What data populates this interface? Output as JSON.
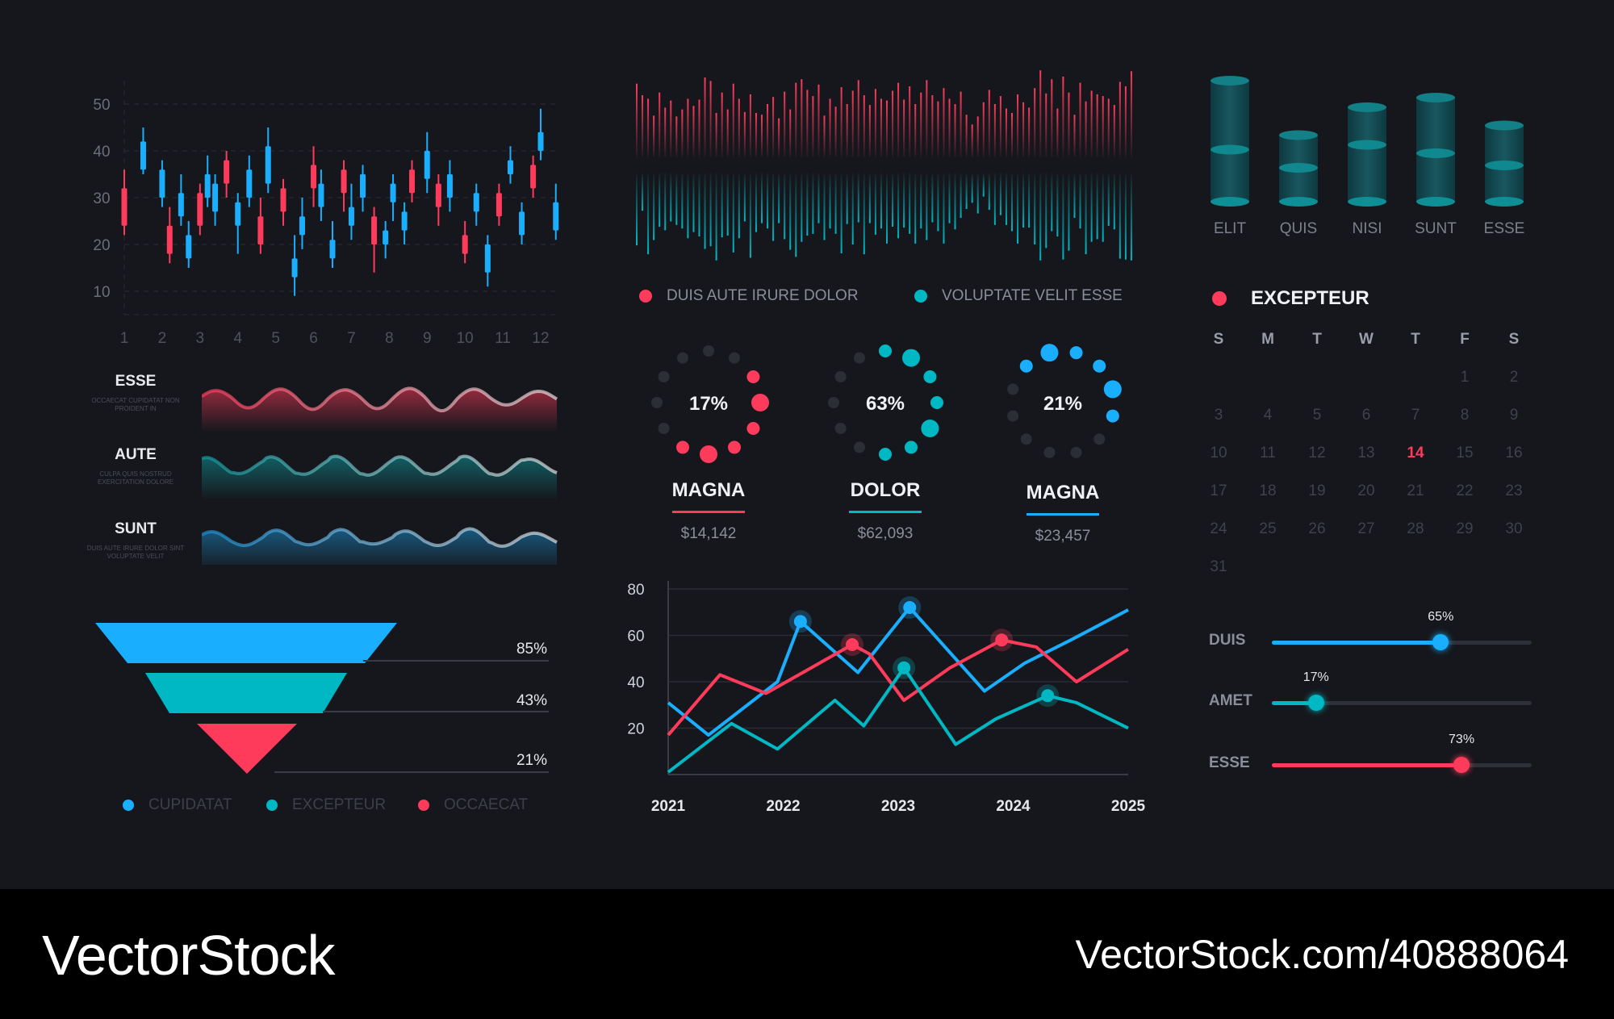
{
  "colors": {
    "background": "#16171c",
    "red": "#ff3b5c",
    "cyan": "#00b8c4",
    "blue": "#1aaeff",
    "teal": "#0e8f95",
    "grid": "#2c2e36"
  },
  "candlestick": {
    "y_ticks": [
      "50",
      "40",
      "30",
      "20",
      "10"
    ],
    "x_ticks": [
      "1",
      "2",
      "3",
      "4",
      "5",
      "6",
      "7",
      "8",
      "9",
      "10",
      "11",
      "12"
    ]
  },
  "waves": [
    {
      "title": "ESSE",
      "subtitle": "OCCAECAT CUPIDATAT NON PROIDENT IN"
    },
    {
      "title": "AUTE",
      "subtitle": "CULPA QUIS NOSTRUD EXERCITATION DOLORE"
    },
    {
      "title": "SUNT",
      "subtitle": "DUIS AUTE IRURE DOLOR SINT VOLUPTATE VELIT"
    }
  ],
  "funnel": {
    "labels": [
      "85%",
      "43%",
      "21%"
    ],
    "legend": [
      "CUPIDATAT",
      "EXCEPTEUR",
      "OCCAECAT"
    ]
  },
  "spectrum_legend": [
    "DUIS AUTE IRURE DOLOR",
    "VOLUPTATE VELIT ESSE"
  ],
  "rings": [
    {
      "pct": "17%",
      "title": "MAGNA",
      "value": "$14,142"
    },
    {
      "pct": "63%",
      "title": "DOLOR",
      "value": "$62,093"
    },
    {
      "pct": "21%",
      "title": "MAGNA",
      "value": "$23,457"
    }
  ],
  "cylinders": {
    "labels": [
      "ELIT",
      "QUIS",
      "NISI",
      "SUNT",
      "ESSE"
    ]
  },
  "calendar": {
    "title": "EXCEPTEUR",
    "weekdays": [
      "S",
      "M",
      "T",
      "W",
      "T",
      "F",
      "S"
    ],
    "days": [
      "1",
      "2",
      "3",
      "4",
      "5",
      "6",
      "7",
      "8",
      "9",
      "10",
      "11",
      "12",
      "13",
      "14",
      "15",
      "16",
      "17",
      "18",
      "19",
      "20",
      "21",
      "22",
      "23",
      "24",
      "25",
      "26",
      "27",
      "28",
      "29",
      "30",
      "31"
    ],
    "highlight": "14"
  },
  "sliders": [
    {
      "label": "DUIS",
      "pct": "65%",
      "value": 0.65,
      "color": "#1aaeff"
    },
    {
      "label": "AMET",
      "pct": "17%",
      "value": 0.17,
      "color": "#00b8c4"
    },
    {
      "label": "ESSE",
      "pct": "73%",
      "value": 0.73,
      "color": "#ff3b5c"
    }
  ],
  "footer": {
    "brand": "VectorStock",
    "url": "VectorStock.com/40888064"
  },
  "chart_data": [
    {
      "type": "candlestick",
      "x": [
        1,
        2,
        3,
        4,
        5,
        6,
        7,
        8,
        9,
        10,
        11,
        12
      ],
      "ylim": [
        5,
        55
      ],
      "y_ticks": [
        10,
        20,
        30,
        40,
        50
      ],
      "grid": true,
      "candles": [
        {
          "x": 1.0,
          "o": 24,
          "c": 32,
          "h": 36,
          "l": 22,
          "up": false
        },
        {
          "x": 1.5,
          "o": 36,
          "c": 42,
          "h": 45,
          "l": 35,
          "up": true
        },
        {
          "x": 2.0,
          "o": 30,
          "c": 36,
          "h": 38,
          "l": 28,
          "up": true
        },
        {
          "x": 2.2,
          "o": 18,
          "c": 24,
          "h": 28,
          "l": 16,
          "up": false
        },
        {
          "x": 2.5,
          "o": 26,
          "c": 31,
          "h": 35,
          "l": 24,
          "up": true
        },
        {
          "x": 2.7,
          "o": 17,
          "c": 22,
          "h": 25,
          "l": 15,
          "up": true
        },
        {
          "x": 3.0,
          "o": 24,
          "c": 31,
          "h": 33,
          "l": 22,
          "up": false
        },
        {
          "x": 3.2,
          "o": 30,
          "c": 35,
          "h": 39,
          "l": 28,
          "up": true
        },
        {
          "x": 3.4,
          "o": 27,
          "c": 33,
          "h": 35,
          "l": 24,
          "up": true
        },
        {
          "x": 3.7,
          "o": 33,
          "c": 38,
          "h": 40,
          "l": 30,
          "up": false
        },
        {
          "x": 4.0,
          "o": 24,
          "c": 29,
          "h": 31,
          "l": 18,
          "up": true
        },
        {
          "x": 4.3,
          "o": 30,
          "c": 36,
          "h": 39,
          "l": 28,
          "up": true
        },
        {
          "x": 4.6,
          "o": 20,
          "c": 26,
          "h": 30,
          "l": 18,
          "up": false
        },
        {
          "x": 4.8,
          "o": 33,
          "c": 41,
          "h": 45,
          "l": 31,
          "up": true
        },
        {
          "x": 5.2,
          "o": 27,
          "c": 32,
          "h": 34,
          "l": 24,
          "up": false
        },
        {
          "x": 5.5,
          "o": 13,
          "c": 17,
          "h": 22,
          "l": 9,
          "up": true
        },
        {
          "x": 5.7,
          "o": 22,
          "c": 26,
          "h": 30,
          "l": 19,
          "up": true
        },
        {
          "x": 6.0,
          "o": 32,
          "c": 37,
          "h": 41,
          "l": 28,
          "up": false
        },
        {
          "x": 6.2,
          "o": 28,
          "c": 33,
          "h": 36,
          "l": 25,
          "up": true
        },
        {
          "x": 6.5,
          "o": 17,
          "c": 21,
          "h": 25,
          "l": 15,
          "up": true
        },
        {
          "x": 6.8,
          "o": 31,
          "c": 36,
          "h": 38,
          "l": 27,
          "up": false
        },
        {
          "x": 7.0,
          "o": 24,
          "c": 28,
          "h": 33,
          "l": 21,
          "up": true
        },
        {
          "x": 7.3,
          "o": 30,
          "c": 35,
          "h": 37,
          "l": 27,
          "up": true
        },
        {
          "x": 7.6,
          "o": 20,
          "c": 26,
          "h": 28,
          "l": 14,
          "up": false
        },
        {
          "x": 7.9,
          "o": 20,
          "c": 23,
          "h": 25,
          "l": 17,
          "up": true
        },
        {
          "x": 8.1,
          "o": 29,
          "c": 33,
          "h": 35,
          "l": 25,
          "up": true
        },
        {
          "x": 8.4,
          "o": 23,
          "c": 27,
          "h": 29,
          "l": 20,
          "up": true
        },
        {
          "x": 8.6,
          "o": 31,
          "c": 36,
          "h": 38,
          "l": 29,
          "up": false
        },
        {
          "x": 9.0,
          "o": 34,
          "c": 40,
          "h": 44,
          "l": 31,
          "up": true
        },
        {
          "x": 9.3,
          "o": 28,
          "c": 33,
          "h": 35,
          "l": 24,
          "up": false
        },
        {
          "x": 9.6,
          "o": 30,
          "c": 35,
          "h": 38,
          "l": 27,
          "up": true
        },
        {
          "x": 10.0,
          "o": 18,
          "c": 22,
          "h": 25,
          "l": 16,
          "up": false
        },
        {
          "x": 10.3,
          "o": 27,
          "c": 31,
          "h": 33,
          "l": 24,
          "up": true
        },
        {
          "x": 10.6,
          "o": 14,
          "c": 20,
          "h": 22,
          "l": 11,
          "up": true
        },
        {
          "x": 10.9,
          "o": 26,
          "c": 31,
          "h": 33,
          "l": 24,
          "up": false
        },
        {
          "x": 11.2,
          "o": 35,
          "c": 38,
          "h": 41,
          "l": 33,
          "up": true
        },
        {
          "x": 11.5,
          "o": 22,
          "c": 27,
          "h": 29,
          "l": 20,
          "up": true
        },
        {
          "x": 11.8,
          "o": 32,
          "c": 37,
          "h": 39,
          "l": 30,
          "up": false
        },
        {
          "x": 12.0,
          "o": 40,
          "c": 44,
          "h": 49,
          "l": 38,
          "up": true
        },
        {
          "x": 12.4,
          "o": 23,
          "c": 29,
          "h": 33,
          "l": 21,
          "up": true
        }
      ]
    },
    {
      "type": "bar",
      "subtype": "mirrored-spectrum",
      "bars": 88,
      "series": [
        {
          "name": "DUIS AUTE IRURE DOLOR",
          "color": "#ff3b5c",
          "values": [
            0.83,
            0.7,
            0.66,
            0.47,
            0.73,
            0.56,
            0.64,
            0.46,
            0.54,
            0.66,
            0.58,
            0.65,
            0.9,
            0.86,
            0.5,
            0.73,
            0.54,
            0.83,
            0.66,
            0.51,
            0.71,
            0.5,
            0.48,
            0.6,
            0.68,
            0.44,
            0.74,
            0.54,
            0.84,
            0.88,
            0.76,
            0.69,
            0.82,
            0.47,
            0.66,
            0.57,
            0.79,
            0.6,
            0.75,
            0.87,
            0.7,
            0.59,
            0.77,
            0.66,
            0.64,
            0.75,
            0.84,
            0.65,
            0.8,
            0.6,
            0.73,
            0.87,
            0.7,
            0.63,
            0.78,
            0.66,
            0.6,
            0.74,
            0.48,
            0.37,
            0.46,
            0.62,
            0.76,
            0.6,
            0.69,
            0.55,
            0.5,
            0.71,
            0.62,
            0.56,
            0.78,
            0.98,
            0.72,
            0.88,
            0.55,
            0.91,
            0.73,
            0.48,
            0.84,
            0.63,
            0.75,
            0.71,
            0.69,
            0.66,
            0.59,
            0.85,
            0.8,
            0.97
          ]
        },
        {
          "name": "VOLUPTATE VELIT ESSE",
          "color": "#00b8c4",
          "values": [
            0.81,
            0.42,
            0.91,
            0.75,
            0.6,
            0.64,
            0.54,
            0.58,
            0.62,
            0.73,
            0.66,
            0.71,
            0.85,
            0.82,
            0.98,
            0.72,
            0.7,
            0.89,
            0.73,
            0.54,
            0.95,
            0.66,
            0.56,
            0.62,
            0.76,
            0.56,
            0.74,
            0.86,
            0.94,
            0.77,
            0.7,
            0.68,
            0.56,
            0.75,
            0.62,
            0.68,
            0.9,
            0.57,
            0.8,
            0.55,
            0.91,
            0.56,
            0.69,
            0.62,
            0.79,
            0.6,
            0.73,
            0.61,
            0.68,
            0.79,
            0.62,
            0.75,
            0.55,
            0.65,
            0.79,
            0.56,
            0.63,
            0.5,
            0.4,
            0.33,
            0.45,
            0.26,
            0.41,
            0.58,
            0.47,
            0.58,
            0.65,
            0.79,
            0.61,
            0.61,
            0.8,
            0.98,
            0.84,
            0.65,
            0.71,
            0.97,
            0.87,
            0.5,
            0.62,
            0.91,
            0.77,
            0.74,
            0.77,
            0.59,
            0.63,
            0.96,
            0.97,
            0.98
          ]
        }
      ]
    },
    {
      "type": "line",
      "x": [
        2021,
        2021.4,
        2021.6,
        2022.1,
        2022.4,
        2022.6,
        2022.9,
        2023.3,
        2023.6,
        2023.8,
        2024.1,
        2024.5,
        2024.8,
        2025.0
      ],
      "xlim": [
        2021,
        2025
      ],
      "ylim": [
        0,
        80
      ],
      "y_ticks": [
        20,
        40,
        60,
        80
      ],
      "x_ticks": [
        "2021",
        "2022",
        "2023",
        "2024",
        "2025"
      ],
      "grid": true,
      "series": [
        {
          "name": "blue",
          "color": "#1aaeff",
          "points": [
            [
              2021,
              31
            ],
            [
              2021.35,
              17
            ],
            [
              2021.95,
              40
            ],
            [
              2022.15,
              66
            ],
            [
              2022.65,
              44
            ],
            [
              2023.1,
              72
            ],
            [
              2023.75,
              36
            ],
            [
              2024.1,
              48
            ],
            [
              2024.5,
              58
            ],
            [
              2025,
              71
            ]
          ],
          "markers": [
            [
              2022.15,
              66
            ],
            [
              2023.1,
              72
            ]
          ]
        },
        {
          "name": "red",
          "color": "#ff3b5c",
          "points": [
            [
              2021,
              17
            ],
            [
              2021.45,
              43
            ],
            [
              2021.85,
              35
            ],
            [
              2022.6,
              56
            ],
            [
              2022.75,
              52
            ],
            [
              2023.05,
              32
            ],
            [
              2023.45,
              46
            ],
            [
              2023.9,
              58
            ],
            [
              2024.2,
              55
            ],
            [
              2024.55,
              40
            ],
            [
              2025,
              54
            ]
          ],
          "markers": [
            [
              2022.6,
              56
            ],
            [
              2023.9,
              58
            ]
          ]
        },
        {
          "name": "cyan",
          "color": "#00b8c4",
          "points": [
            [
              2021,
              1
            ],
            [
              2021.55,
              22
            ],
            [
              2021.95,
              11
            ],
            [
              2022.45,
              32
            ],
            [
              2022.7,
              21
            ],
            [
              2023.05,
              46
            ],
            [
              2023.5,
              13
            ],
            [
              2023.85,
              24
            ],
            [
              2024.3,
              34
            ],
            [
              2024.55,
              31
            ],
            [
              2025,
              20
            ]
          ],
          "markers": [
            [
              2023.05,
              46
            ],
            [
              2024.3,
              34
            ]
          ]
        }
      ]
    },
    {
      "type": "area",
      "subtype": "waves",
      "series": [
        {
          "name": "ESSE",
          "color": "#ff3b5c"
        },
        {
          "name": "AUTE",
          "color": "#0e9aa0"
        },
        {
          "name": "SUNT",
          "color": "#1a8fd0"
        }
      ]
    },
    {
      "type": "bar",
      "subtype": "funnel",
      "categories": [
        "CUPIDATAT",
        "EXCEPTEUR",
        "OCCAECAT"
      ],
      "values": [
        85,
        43,
        21
      ],
      "colors": [
        "#1aaeff",
        "#00b8c4",
        "#ff3b5c"
      ]
    },
    {
      "type": "pie",
      "subtype": "dot-rings",
      "values": [
        17,
        63,
        21
      ],
      "colors": [
        "#ff3b5c",
        "#00b8c4",
        "#1aaeff"
      ]
    },
    {
      "type": "bar",
      "subtype": "cylinders",
      "categories": [
        "ELIT",
        "QUIS",
        "NISI",
        "SUNT",
        "ESSE"
      ],
      "values": [
        100,
        55,
        78,
        86,
        63
      ],
      "mid": [
        43,
        28,
        47,
        40,
        30
      ]
    }
  ]
}
